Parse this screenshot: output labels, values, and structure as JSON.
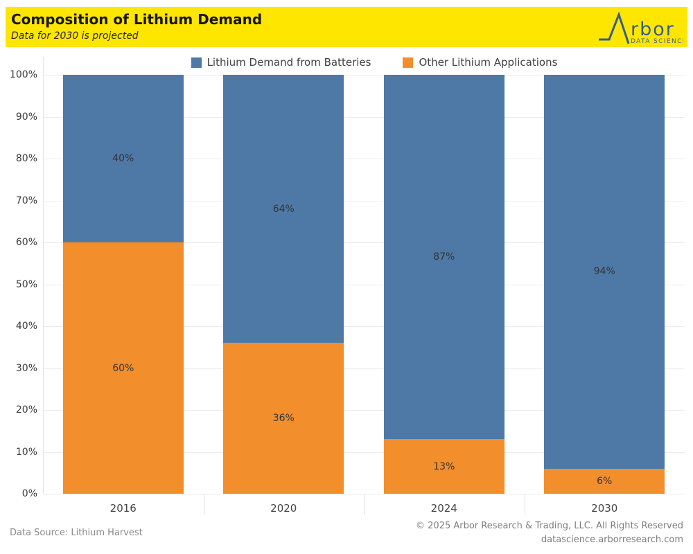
{
  "header": {
    "title": "Composition of Lithium Demand",
    "subtitle": "Data for 2030 is projected",
    "banner_color": "#FFE600",
    "logo_name": "rbor",
    "logo_tagline": "DATA SCIENCE",
    "logo_color": "#335E8E"
  },
  "legend": {
    "items": [
      {
        "label": "Lithium Demand from Batteries",
        "color": "#4E79A7"
      },
      {
        "label": "Other Lithium Applications",
        "color": "#F28E2B"
      }
    ]
  },
  "chart_data": {
    "type": "bar",
    "stacked": true,
    "orientation": "vertical",
    "categories": [
      "2016",
      "2020",
      "2024",
      "2030"
    ],
    "series": [
      {
        "name": "Lithium Demand from Batteries",
        "key": "batteries",
        "color": "#4E79A7",
        "values": [
          40,
          64,
          87,
          94
        ],
        "labels": [
          "40%",
          "64%",
          "87%",
          "94%"
        ]
      },
      {
        "name": "Other Lithium Applications",
        "key": "other",
        "color": "#F28E2B",
        "values": [
          60,
          36,
          13,
          6
        ],
        "labels": [
          "60%",
          "36%",
          "13%",
          "6%"
        ]
      }
    ],
    "y_ticks": [
      "0%",
      "10%",
      "20%",
      "30%",
      "40%",
      "50%",
      "60%",
      "70%",
      "80%",
      "90%",
      "100%"
    ],
    "ylim": [
      0,
      100
    ],
    "unit": "%",
    "grid": true,
    "grid_color": "#ECECEC",
    "legend_position": "top"
  },
  "footer": {
    "source": "Data Source: Lithium Harvest",
    "copyright": "© 2025 Arbor Research & Trading, LLC. All Rights Reserved",
    "website": "datascience.arborresearch.com"
  }
}
